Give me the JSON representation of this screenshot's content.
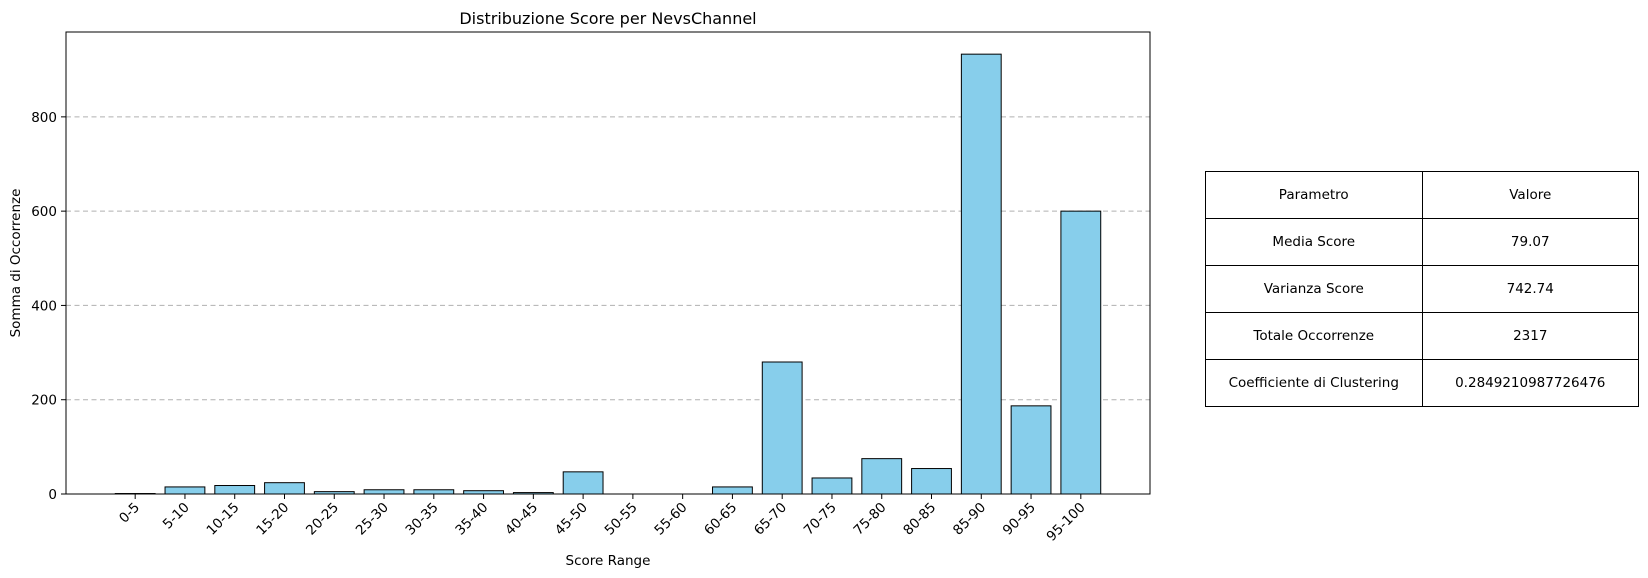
{
  "chart_data": {
    "type": "bar",
    "title": "Distribuzione Score per NevsChannel",
    "xlabel": "Score Range",
    "ylabel": "Somma di Occorrenze",
    "categories": [
      "0-5",
      "5-10",
      "10-15",
      "15-20",
      "20-25",
      "25-30",
      "30-35",
      "35-40",
      "40-45",
      "45-50",
      "50-55",
      "55-60",
      "60-65",
      "65-70",
      "70-75",
      "75-80",
      "80-85",
      "85-90",
      "90-95",
      "95-100"
    ],
    "values": [
      1,
      15,
      18,
      24,
      5,
      9,
      9,
      7,
      3,
      47,
      0,
      0,
      15,
      280,
      34,
      75,
      54,
      933,
      187,
      600
    ],
    "ylim": [
      0,
      980
    ],
    "yticks": [
      0,
      200,
      400,
      600,
      800
    ],
    "grid": "y-dashed",
    "bar_color": "#87ceeb",
    "bar_edge_color": "#000000",
    "grid_color": "#b0b0b0"
  },
  "table": {
    "headers": [
      "Parametro",
      "Valore"
    ],
    "rows": [
      [
        "Media Score",
        "79.07"
      ],
      [
        "Varianza Score",
        "742.74"
      ],
      [
        "Totale Occorrenze",
        "2317"
      ],
      [
        "Coefficiente di Clustering",
        "0.2849210987726476"
      ]
    ]
  }
}
